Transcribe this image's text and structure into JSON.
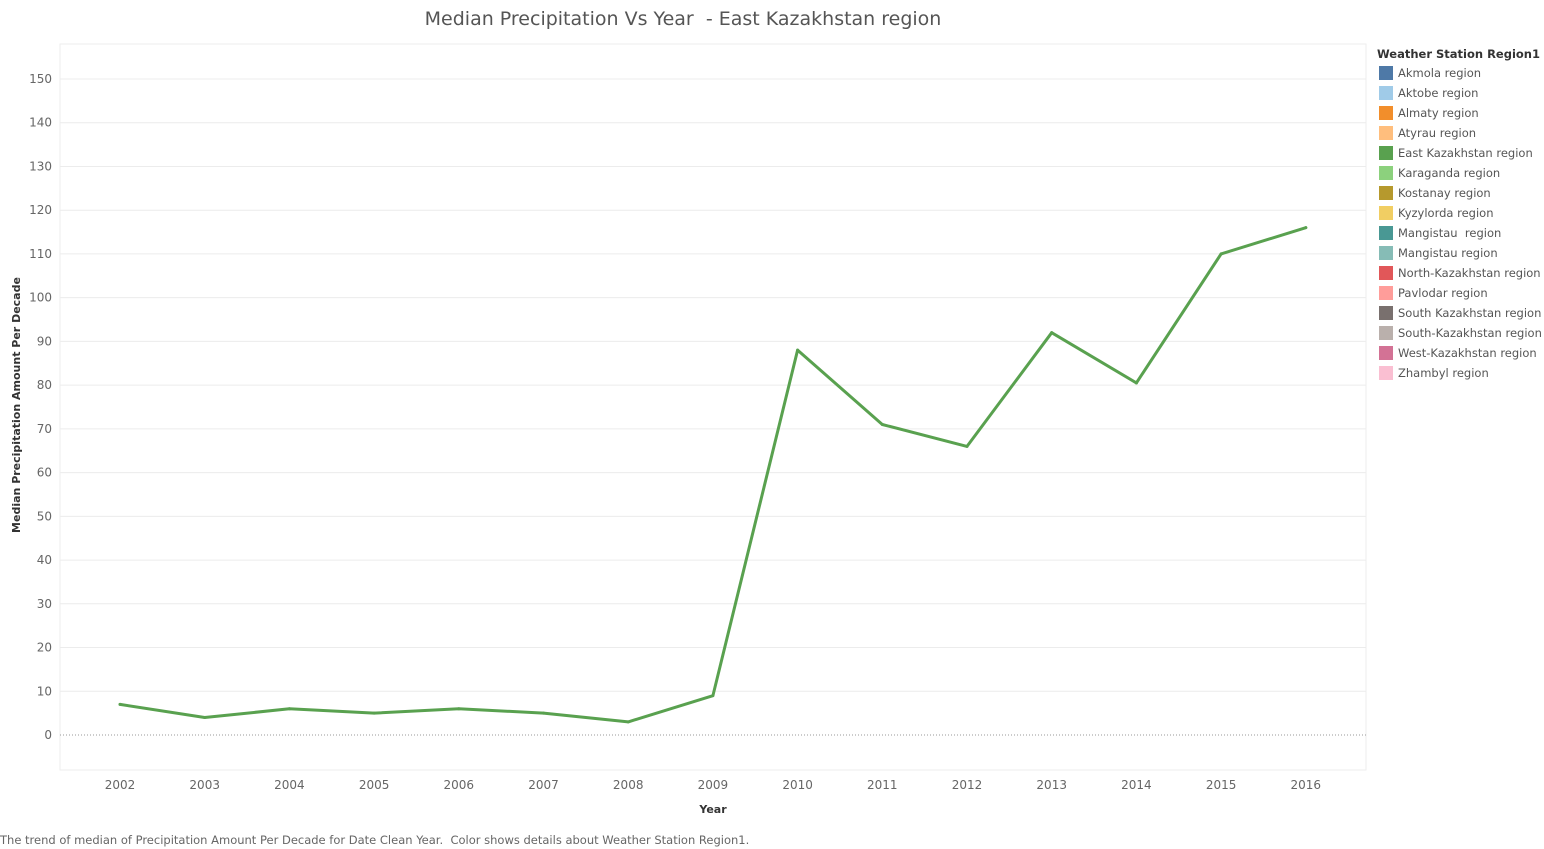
{
  "chart_data": {
    "type": "line",
    "title": "Median Precipitation Vs Year  - East Kazakhstan region",
    "xlabel": "Year",
    "ylabel": "Median Precipitation Amount Per Decade",
    "ylim": [
      -8,
      158
    ],
    "yticks": [
      0,
      10,
      20,
      30,
      40,
      50,
      60,
      70,
      80,
      90,
      100,
      110,
      120,
      130,
      140,
      150
    ],
    "x": [
      "2002",
      "2003",
      "2004",
      "2005",
      "2006",
      "2007",
      "2008",
      "2009",
      "2010",
      "2011",
      "2012",
      "2013",
      "2014",
      "2015",
      "2016"
    ],
    "series": [
      {
        "color": "#59A14F",
        "values": [
          7,
          4,
          6,
          5,
          6,
          5,
          3,
          9,
          88,
          71,
          66,
          92,
          80.5,
          110,
          116
        ]
      }
    ],
    "grid": true,
    "legend_position": "right"
  },
  "legend": {
    "title": "Weather Station Region1",
    "items": [
      {
        "label": "Akmola region",
        "color": "#4E79A7"
      },
      {
        "label": "Aktobe region",
        "color": "#A0CBE8"
      },
      {
        "label": "Almaty region",
        "color": "#F28E2B"
      },
      {
        "label": "Atyrau region",
        "color": "#FFBE7D"
      },
      {
        "label": "East Kazakhstan region",
        "color": "#59A14F"
      },
      {
        "label": "Karaganda region",
        "color": "#8CD17D"
      },
      {
        "label": "Kostanay region",
        "color": "#B6992D"
      },
      {
        "label": "Kyzylorda region",
        "color": "#F1CE63"
      },
      {
        "label": "Mangistau  region",
        "color": "#499894"
      },
      {
        "label": "Mangistau region",
        "color": "#86BCB6"
      },
      {
        "label": "North-Kazakhstan region",
        "color": "#E15759"
      },
      {
        "label": "Pavlodar region",
        "color": "#FF9D9A"
      },
      {
        "label": "South Kazakhstan region",
        "color": "#79706E"
      },
      {
        "label": "South-Kazakhstan region",
        "color": "#BAB0AC"
      },
      {
        "label": "West-Kazakhstan region",
        "color": "#D37295"
      },
      {
        "label": "Zhambyl region",
        "color": "#FABFD2"
      }
    ]
  },
  "caption": "The trend of median of Precipitation Amount Per Decade for Date Clean Year.  Color shows details about Weather Station Region1."
}
